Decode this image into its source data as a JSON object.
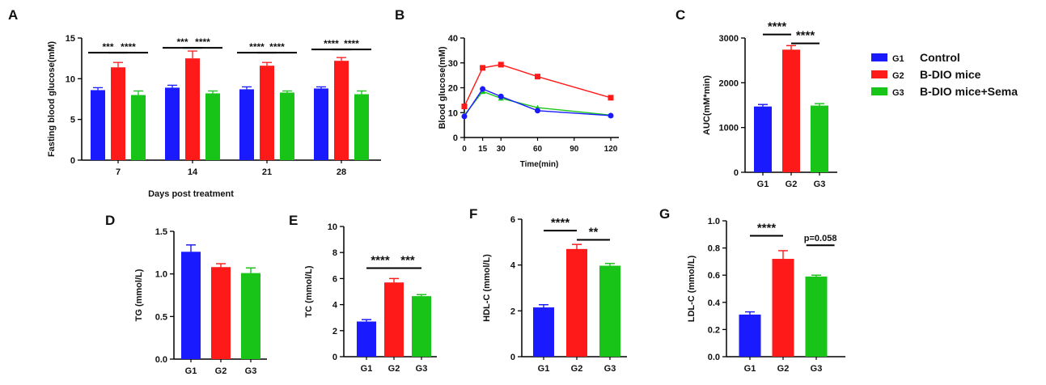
{
  "colors": {
    "G1": "#1a1aff",
    "G2": "#ff1a1a",
    "G3": "#19c419"
  },
  "legend": [
    {
      "code": "G1",
      "label": "Control",
      "color": "#1a1aff"
    },
    {
      "code": "G2",
      "label": "B-DIO mice",
      "color": "#ff1a1a"
    },
    {
      "code": "G3",
      "label": "B-DIO mice+Sema",
      "color": "#19c419"
    }
  ],
  "chart_data": [
    {
      "panel": "A",
      "type": "bar",
      "xlabel": "Days post treatment",
      "ylabel": "Fasting blood glucose(mM)",
      "ylim": [
        0,
        15
      ],
      "yticks": [
        0,
        5,
        10,
        15
      ],
      "categories": [
        "7",
        "14",
        "21",
        "28"
      ],
      "series": [
        {
          "name": "G1",
          "values": [
            8.6,
            8.9,
            8.7,
            8.8
          ],
          "err": [
            0.3,
            0.3,
            0.3,
            0.2
          ]
        },
        {
          "name": "G2",
          "values": [
            11.4,
            12.5,
            11.6,
            12.2
          ],
          "err": [
            0.6,
            0.9,
            0.4,
            0.4
          ]
        },
        {
          "name": "G3",
          "values": [
            8.0,
            8.2,
            8.3,
            8.1
          ],
          "err": [
            0.5,
            0.3,
            0.2,
            0.4
          ]
        }
      ],
      "annotations": [
        {
          "label": "***",
          "category": 0,
          "from": 0,
          "to": 1,
          "y": 13.2
        },
        {
          "label": "****",
          "category": 0,
          "from": 1,
          "to": 2,
          "y": 13.2
        },
        {
          "label": "***",
          "category": 1,
          "from": 0,
          "to": 1,
          "y": 13.8
        },
        {
          "label": "****",
          "category": 1,
          "from": 1,
          "to": 2,
          "y": 13.8
        },
        {
          "label": "****",
          "category": 2,
          "from": 0,
          "to": 1,
          "y": 13.2
        },
        {
          "label": "****",
          "category": 2,
          "from": 1,
          "to": 2,
          "y": 13.2
        },
        {
          "label": "****",
          "category": 3,
          "from": 0,
          "to": 1,
          "y": 13.6
        },
        {
          "label": "****",
          "category": 3,
          "from": 1,
          "to": 2,
          "y": 13.6
        }
      ]
    },
    {
      "panel": "B",
      "type": "line",
      "xlabel": "Time(min)",
      "ylabel": "Blood glucose(mM)",
      "xlim": [
        0,
        120
      ],
      "xticks": [
        0,
        15,
        30,
        60,
        90,
        120
      ],
      "ylim": [
        0,
        40
      ],
      "yticks": [
        0,
        10,
        20,
        30,
        40
      ],
      "x": [
        0,
        15,
        30,
        60,
        120
      ],
      "series": [
        {
          "name": "G2",
          "values": [
            12.5,
            28,
            29.3,
            24.5,
            16
          ]
        },
        {
          "name": "G3",
          "values": [
            9,
            18.5,
            15.8,
            12,
            9
          ]
        },
        {
          "name": "G1",
          "values": [
            8.5,
            19.5,
            16.5,
            10.8,
            8.8
          ]
        }
      ]
    },
    {
      "panel": "C",
      "type": "bar",
      "xlabel": "",
      "ylabel": "AUC(mM*min)",
      "ylim": [
        0,
        3000
      ],
      "yticks": [
        0,
        1000,
        2000,
        3000
      ],
      "categories": [
        "G1",
        "G2",
        "G3"
      ],
      "values": [
        1470,
        2740,
        1490
      ],
      "err": [
        45,
        90,
        45
      ],
      "annotations": [
        {
          "label": "****",
          "from": 0,
          "to": 1,
          "y": 3080
        },
        {
          "label": "****",
          "from": 1,
          "to": 2,
          "y": 2880
        }
      ]
    },
    {
      "panel": "D",
      "type": "bar",
      "xlabel": "",
      "ylabel": "TG (mmol/L)",
      "ylim": [
        0,
        1.5
      ],
      "yticks": [
        "0.0",
        "0.5",
        "1.0",
        "1.5"
      ],
      "categories": [
        "G1",
        "G2",
        "G3"
      ],
      "values": [
        1.26,
        1.08,
        1.01
      ],
      "err": [
        0.08,
        0.04,
        0.06
      ],
      "annotations": []
    },
    {
      "panel": "E",
      "type": "bar",
      "xlabel": "",
      "ylabel": "TC (mmol/L)",
      "ylim": [
        0,
        10
      ],
      "yticks": [
        0,
        2,
        4,
        6,
        8,
        10
      ],
      "categories": [
        "G1",
        "G2",
        "G3"
      ],
      "values": [
        2.7,
        5.7,
        4.65
      ],
      "err": [
        0.15,
        0.3,
        0.12
      ],
      "annotations": [
        {
          "label": "****",
          "from": 0,
          "to": 1,
          "y": 6.8
        },
        {
          "label": "***",
          "from": 1,
          "to": 2,
          "y": 6.8
        }
      ]
    },
    {
      "panel": "F",
      "type": "bar",
      "xlabel": "",
      "ylabel": "HDL-C (mmol/L)",
      "ylim": [
        0,
        6
      ],
      "yticks": [
        0,
        2,
        4,
        6
      ],
      "categories": [
        "G1",
        "G2",
        "G3"
      ],
      "values": [
        2.15,
        4.7,
        3.97
      ],
      "err": [
        0.12,
        0.2,
        0.1
      ],
      "annotations": [
        {
          "label": "****",
          "from": 0,
          "to": 1,
          "y": 5.5
        },
        {
          "label": "**",
          "from": 1,
          "to": 2,
          "y": 5.1
        }
      ]
    },
    {
      "panel": "G",
      "type": "bar",
      "xlabel": "",
      "ylabel": "LDL-C (mmol/L)",
      "ylim": [
        0,
        1.0
      ],
      "yticks": [
        "0.0",
        "0.2",
        "0.4",
        "0.6",
        "0.8",
        "1.0"
      ],
      "categories": [
        "G1",
        "G2",
        "G3"
      ],
      "values": [
        0.31,
        0.72,
        0.59
      ],
      "err": [
        0.02,
        0.06,
        0.01
      ],
      "annotations": [
        {
          "label": "****",
          "from": 0,
          "to": 1,
          "y": 0.89
        },
        {
          "label": "p=0.058",
          "from": 1.7,
          "to": 2.55,
          "y": 0.82
        }
      ]
    }
  ]
}
